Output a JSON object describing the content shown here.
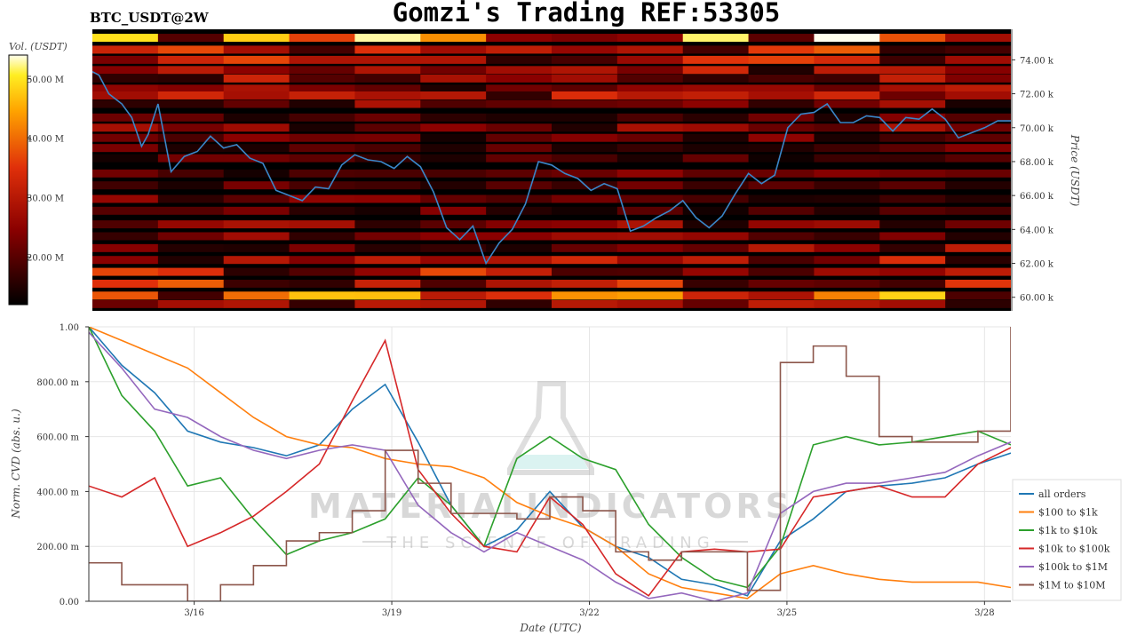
{
  "header": {
    "symbol": "BTC_USDT@2W",
    "title": "Gomzi's Trading REF:53305"
  },
  "watermark": {
    "brand": "MATERIALINDICATORS",
    "tagline": "THE SCIENCE OF TRADING"
  },
  "colors": {
    "price_line": "#3a86c8",
    "all_orders": "#1f77b4",
    "usd_100_1k": "#ff7f0e",
    "usd_1k_10k": "#2ca02c",
    "usd_10k_100k": "#d62728",
    "usd_100k_1m": "#9467bd",
    "usd_1m_10m": "#8c564b"
  },
  "chart_data": [
    {
      "type": "heatmap",
      "name": "order-book-heatmap",
      "colorbar": {
        "label": "Vol. (USDT)",
        "ticks": [
          "50.00 M",
          "40.00 M",
          "30.00 M",
          "20.00 M"
        ],
        "range": [
          12,
          54
        ]
      },
      "ylabel": "Price (USDT)",
      "yticks": [
        "74.00 k",
        "72.00 k",
        "70.00 k",
        "68.00 k",
        "66.00 k",
        "64.00 k",
        "62.00 k",
        "60.00 k"
      ],
      "ylim": [
        59200,
        75800
      ],
      "xlim": [
        0,
        14.0
      ],
      "bands": [
        {
          "price": 75300,
          "v": 0.95
        },
        {
          "price": 74600,
          "v": 0.55
        },
        {
          "price": 74000,
          "v": 0.45
        },
        {
          "price": 73400,
          "v": 0.4
        },
        {
          "price": 72900,
          "v": 0.5
        },
        {
          "price": 72300,
          "v": 0.35
        },
        {
          "price": 71900,
          "v": 0.4
        },
        {
          "price": 71400,
          "v": 0.3
        },
        {
          "price": 70600,
          "v": 0.25
        },
        {
          "price": 70000,
          "v": 0.3
        },
        {
          "price": 69400,
          "v": 0.25
        },
        {
          "price": 68800,
          "v": 0.22
        },
        {
          "price": 68200,
          "v": 0.2
        },
        {
          "price": 67300,
          "v": 0.25
        },
        {
          "price": 66600,
          "v": 0.22
        },
        {
          "price": 65800,
          "v": 0.25
        },
        {
          "price": 65100,
          "v": 0.25
        },
        {
          "price": 64300,
          "v": 0.3
        },
        {
          "price": 63600,
          "v": 0.3
        },
        {
          "price": 62900,
          "v": 0.35
        },
        {
          "price": 62200,
          "v": 0.4
        },
        {
          "price": 61500,
          "v": 0.5
        },
        {
          "price": 60800,
          "v": 0.55
        },
        {
          "price": 60100,
          "v": 0.7
        },
        {
          "price": 59600,
          "v": 0.35
        }
      ],
      "price_series": {
        "name": "BTC price",
        "t": [
          0.0,
          0.1,
          0.25,
          0.45,
          0.6,
          0.75,
          0.85,
          1.0,
          1.2,
          1.4,
          1.6,
          1.8,
          2.0,
          2.2,
          2.4,
          2.6,
          2.8,
          3.0,
          3.2,
          3.4,
          3.6,
          3.8,
          4.0,
          4.2,
          4.4,
          4.6,
          4.8,
          5.0,
          5.2,
          5.4,
          5.6,
          5.8,
          6.0,
          6.2,
          6.4,
          6.6,
          6.8,
          7.0,
          7.2,
          7.4,
          7.6,
          7.8,
          8.0,
          8.2,
          8.4,
          8.6,
          8.8,
          9.0,
          9.2,
          9.4,
          9.6,
          9.8,
          10.0,
          10.2,
          10.4,
          10.6,
          10.8,
          11.0,
          11.2,
          11.4,
          11.6,
          11.8,
          12.0,
          12.2,
          12.4,
          12.6,
          12.8,
          13.0,
          13.2,
          13.4,
          13.6,
          13.8,
          14.0
        ],
        "price": [
          73300,
          73100,
          72000,
          71400,
          70600,
          68900,
          69600,
          71400,
          67400,
          68300,
          68600,
          69500,
          68800,
          69000,
          68200,
          67900,
          66300,
          66000,
          65700,
          66500,
          66400,
          67800,
          68400,
          68100,
          68000,
          67600,
          68300,
          67700,
          66200,
          64100,
          63400,
          64200,
          62000,
          63200,
          64000,
          65500,
          68000,
          67800,
          67300,
          67000,
          66300,
          66700,
          66400,
          63900,
          64200,
          64700,
          65100,
          65700,
          64700,
          64100,
          64800,
          66100,
          67300,
          66700,
          67200,
          70000,
          70800,
          70900,
          71400,
          70300,
          70300,
          70700,
          70600,
          69800,
          70600,
          70500,
          71100,
          70500,
          69400,
          69700,
          70000,
          70400,
          70400
        ]
      }
    },
    {
      "type": "line",
      "name": "normalized-cvd",
      "xlabel": "Date (UTC)",
      "ylabel": "Norm. CVD (abs. u.)",
      "xticks": [
        "3/16",
        "3/19",
        "3/22",
        "3/25",
        "3/28"
      ],
      "xtick_positions": [
        1.6,
        4.6,
        7.6,
        10.6,
        13.6
      ],
      "yticks": [
        "1.00",
        "800.00 m",
        "600.00 m",
        "400.00 m",
        "200.00 m",
        "0.00"
      ],
      "ylim": [
        0,
        1
      ],
      "xlim": [
        0,
        14.0
      ],
      "grid": true,
      "legend_position": "bottom-right",
      "x": [
        0.0,
        0.5,
        1.0,
        1.5,
        2.0,
        2.5,
        3.0,
        3.5,
        4.0,
        4.5,
        5.0,
        5.5,
        6.0,
        6.5,
        7.0,
        7.5,
        8.0,
        8.5,
        9.0,
        9.5,
        10.0,
        10.5,
        11.0,
        11.5,
        12.0,
        12.5,
        13.0,
        13.5,
        14.0
      ],
      "series": [
        {
          "name": "all orders",
          "key": "all_orders",
          "values": [
            1.0,
            0.86,
            0.76,
            0.62,
            0.58,
            0.56,
            0.53,
            0.57,
            0.7,
            0.79,
            0.58,
            0.35,
            0.2,
            0.26,
            0.4,
            0.27,
            0.2,
            0.16,
            0.08,
            0.06,
            0.02,
            0.22,
            0.3,
            0.4,
            0.42,
            0.43,
            0.45,
            0.5,
            0.54
          ]
        },
        {
          "name": "$100 to $1k",
          "key": "usd_100_1k",
          "values": [
            1.0,
            0.95,
            0.9,
            0.85,
            0.76,
            0.67,
            0.6,
            0.57,
            0.56,
            0.52,
            0.5,
            0.49,
            0.45,
            0.36,
            0.31,
            0.27,
            0.2,
            0.1,
            0.05,
            0.03,
            0.01,
            0.1,
            0.13,
            0.1,
            0.08,
            0.07,
            0.07,
            0.07,
            0.05
          ]
        },
        {
          "name": "$1k to $10k",
          "key": "usd_1k_10k",
          "values": [
            1.0,
            0.75,
            0.62,
            0.42,
            0.45,
            0.3,
            0.17,
            0.22,
            0.25,
            0.3,
            0.45,
            0.35,
            0.2,
            0.52,
            0.6,
            0.52,
            0.48,
            0.28,
            0.16,
            0.08,
            0.05,
            0.2,
            0.57,
            0.6,
            0.57,
            0.58,
            0.6,
            0.62,
            0.57
          ]
        },
        {
          "name": "$10k to $100k",
          "key": "usd_10k_100k",
          "values": [
            0.42,
            0.38,
            0.45,
            0.2,
            0.25,
            0.31,
            0.4,
            0.5,
            0.73,
            0.95,
            0.48,
            0.32,
            0.2,
            0.18,
            0.38,
            0.28,
            0.1,
            0.02,
            0.18,
            0.19,
            0.18,
            0.19,
            0.38,
            0.4,
            0.42,
            0.38,
            0.38,
            0.5,
            0.56
          ]
        },
        {
          "name": "$100k to $1M",
          "key": "usd_100k_1m",
          "values": [
            0.98,
            0.85,
            0.7,
            0.67,
            0.6,
            0.55,
            0.52,
            0.55,
            0.57,
            0.55,
            0.35,
            0.25,
            0.18,
            0.25,
            0.2,
            0.15,
            0.07,
            0.01,
            0.03,
            0.0,
            0.03,
            0.32,
            0.4,
            0.43,
            0.43,
            0.45,
            0.47,
            0.53,
            0.58
          ]
        },
        {
          "name": "$1M to $10M",
          "key": "usd_1m_10m",
          "values": [
            0.14,
            0.06,
            0.06,
            0.0,
            0.06,
            0.13,
            0.22,
            0.25,
            0.33,
            0.55,
            0.43,
            0.32,
            0.32,
            0.3,
            0.38,
            0.33,
            0.18,
            0.15,
            0.18,
            0.18,
            0.04,
            0.87,
            0.93,
            0.82,
            0.6,
            0.58,
            0.58,
            0.62,
            1.0
          ]
        }
      ]
    }
  ]
}
